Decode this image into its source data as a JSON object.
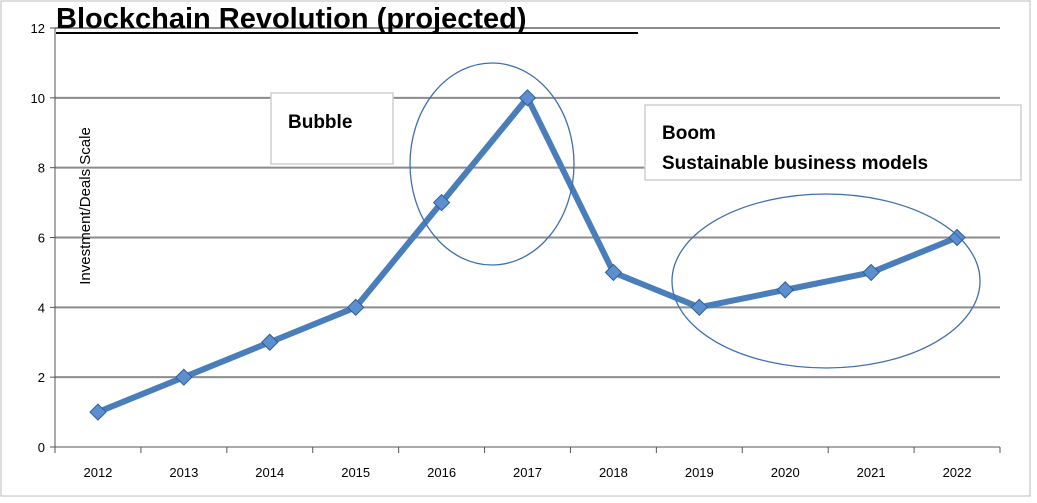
{
  "chart_data": {
    "type": "line",
    "title": "Blockchain Revolution (projected)",
    "ylabel": "Investment/Deals Scale",
    "xlabel": "",
    "ylim": [
      0,
      12
    ],
    "yticks": [
      0,
      2,
      4,
      6,
      8,
      10,
      12
    ],
    "grid": true,
    "categories": [
      "2012",
      "2013",
      "2014",
      "2015",
      "2016",
      "2017",
      "2018",
      "2019",
      "2020",
      "2021",
      "2022"
    ],
    "series": [
      {
        "values": [
          1,
          2,
          3,
          4,
          7,
          10,
          5,
          4,
          4.5,
          5,
          6
        ]
      }
    ],
    "annotations": {
      "bubble": "Bubble",
      "boom_line1": "Boom",
      "boom_line2": "Sustainable business models"
    },
    "colors": {
      "line": "#4a7ebb",
      "marker": "#5b8fd0",
      "ellipse": "#3f6fae",
      "grid": "#8c8c8c"
    }
  }
}
